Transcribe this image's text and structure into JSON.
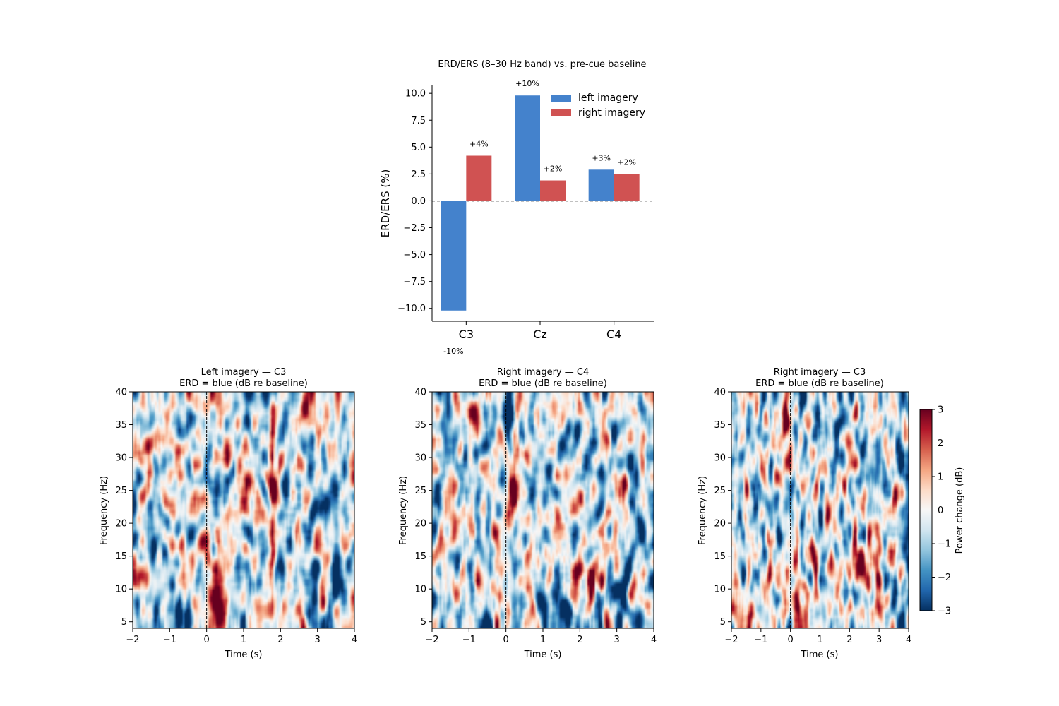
{
  "chart_data": [
    {
      "type": "bar",
      "title": "ERD/ERS (8–30 Hz band) vs. pre-cue baseline",
      "ylabel": "ERD/ERS (%)",
      "xlabel": "",
      "categories": [
        "C3",
        "Cz",
        "C4"
      ],
      "ylim": [
        -11.2,
        10.8
      ],
      "yticks": [
        -10.0,
        -7.5,
        -5.0,
        -2.5,
        0.0,
        2.5,
        5.0,
        7.5,
        10.0
      ],
      "ytick_labels": [
        "−10.0",
        "−7.5",
        "−5.0",
        "−2.5",
        "0.0",
        "2.5",
        "5.0",
        "7.5",
        "10.0"
      ],
      "series": [
        {
          "name": "left imagery",
          "color": "#4482cc",
          "values": [
            -10.2,
            9.8,
            2.9
          ],
          "labels": [
            "-10%",
            "+10%",
            "+3%"
          ]
        },
        {
          "name": "right imagery",
          "color": "#d05252",
          "values": [
            4.2,
            1.9,
            2.5
          ],
          "labels": [
            "+4%",
            "+2%",
            "+2%"
          ]
        }
      ],
      "legend": "top-right",
      "zero_line": "dashed",
      "grid": false
    },
    {
      "type": "heatmap",
      "title_line1": "Left imagery — C3",
      "title_line2": "ERD = blue  (dB re baseline)",
      "xlabel": "Time (s)",
      "ylabel": "Frequency (Hz)",
      "xlim": [
        -2,
        4
      ],
      "ylim": [
        4,
        40
      ],
      "xticks": [
        -2,
        -1,
        0,
        1,
        2,
        3,
        4
      ],
      "xtick_labels": [
        "−2",
        "−1",
        "0",
        "1",
        "2",
        "3",
        "4"
      ],
      "yticks": [
        5,
        10,
        15,
        20,
        25,
        30,
        35,
        40
      ],
      "cue_time": 0,
      "features": [
        {
          "t": 1.78,
          "f": 22,
          "dt": 0.06,
          "df": 18,
          "a": 3.2
        },
        {
          "t": 0.2,
          "f": 11,
          "dt": 0.18,
          "df": 4,
          "a": 2.6
        },
        {
          "t": 0.4,
          "f": 5,
          "dt": 0.12,
          "df": 1.6,
          "a": 2.6
        },
        {
          "t": 1.1,
          "f": 24,
          "dt": 0.08,
          "df": 3,
          "a": 2.2
        },
        {
          "t": 3.5,
          "f": 10,
          "dt": 0.15,
          "df": 4,
          "a": -2.5
        },
        {
          "t": 2.0,
          "f": 13,
          "dt": 0.15,
          "df": 3,
          "a": -2.2
        }
      ]
    },
    {
      "type": "heatmap",
      "title_line1": "Right imagery — C4",
      "title_line2": "ERD = blue  (dB re baseline)",
      "xlabel": "Time (s)",
      "ylabel": "Frequency (Hz)",
      "xlim": [
        -2,
        4
      ],
      "ylim": [
        4,
        40
      ],
      "xticks": [
        -2,
        -1,
        0,
        1,
        2,
        3,
        4
      ],
      "xtick_labels": [
        "−2",
        "−1",
        "0",
        "1",
        "2",
        "3",
        "4"
      ],
      "yticks": [
        5,
        10,
        15,
        20,
        25,
        30,
        35,
        40
      ],
      "cue_time": 0,
      "features": [
        {
          "t": -0.2,
          "f": 32,
          "dt": 0.15,
          "df": 3,
          "a": 2.2
        },
        {
          "t": 0.2,
          "f": 26,
          "dt": 0.12,
          "df": 3,
          "a": 2.4
        },
        {
          "t": 2.3,
          "f": 12,
          "dt": 0.35,
          "df": 1.8,
          "a": 2.0
        },
        {
          "t": 0.7,
          "f": 14,
          "dt": 0.1,
          "df": 2.5,
          "a": 2.0
        },
        {
          "t": -0.8,
          "f": 38,
          "dt": 0.1,
          "df": 2,
          "a": 2.2
        },
        {
          "t": 1.6,
          "f": 7,
          "dt": 0.15,
          "df": 3,
          "a": -2.6
        },
        {
          "t": 3.1,
          "f": 9,
          "dt": 0.12,
          "df": 3,
          "a": -2.6
        },
        {
          "t": 0.0,
          "f": 35,
          "dt": 0.12,
          "df": 3,
          "a": -2.6
        }
      ]
    },
    {
      "type": "heatmap",
      "title_line1": "Right imagery — C3",
      "title_line2": "ERD = blue  (dB re baseline)",
      "xlabel": "Time (s)",
      "ylabel": "Frequency (Hz)",
      "xlim": [
        -2,
        4
      ],
      "ylim": [
        4,
        40
      ],
      "xticks": [
        -2,
        -1,
        0,
        1,
        2,
        3,
        4
      ],
      "xtick_labels": [
        "−2",
        "−1",
        "0",
        "1",
        "2",
        "3",
        "4"
      ],
      "yticks": [
        5,
        10,
        15,
        20,
        25,
        30,
        35,
        40
      ],
      "cue_time": 0,
      "features": [
        {
          "t": -0.15,
          "f": 33,
          "dt": 0.1,
          "df": 3,
          "a": 3.0
        },
        {
          "t": 0.25,
          "f": 10,
          "dt": 0.1,
          "df": 6,
          "a": 2.6
        },
        {
          "t": 0.8,
          "f": 15,
          "dt": 0.1,
          "df": 2.5,
          "a": 2.4
        },
        {
          "t": 2.6,
          "f": 13,
          "dt": 0.3,
          "df": 2,
          "a": 2.0
        },
        {
          "t": 2.4,
          "f": 37,
          "dt": 0.1,
          "df": 2.5,
          "a": -2.4
        },
        {
          "t": 3.6,
          "f": 8,
          "dt": 0.12,
          "df": 3,
          "a": -2.4
        }
      ]
    }
  ],
  "colorbar": {
    "label": "Power change (dB)",
    "range": [
      -3,
      3
    ],
    "ticks": [
      -3,
      -2,
      -1,
      0,
      1,
      2,
      3
    ],
    "tick_labels": [
      "−3",
      "−2",
      "−1",
      "0",
      "1",
      "2",
      "3"
    ],
    "colormap": "RdBu_r"
  }
}
